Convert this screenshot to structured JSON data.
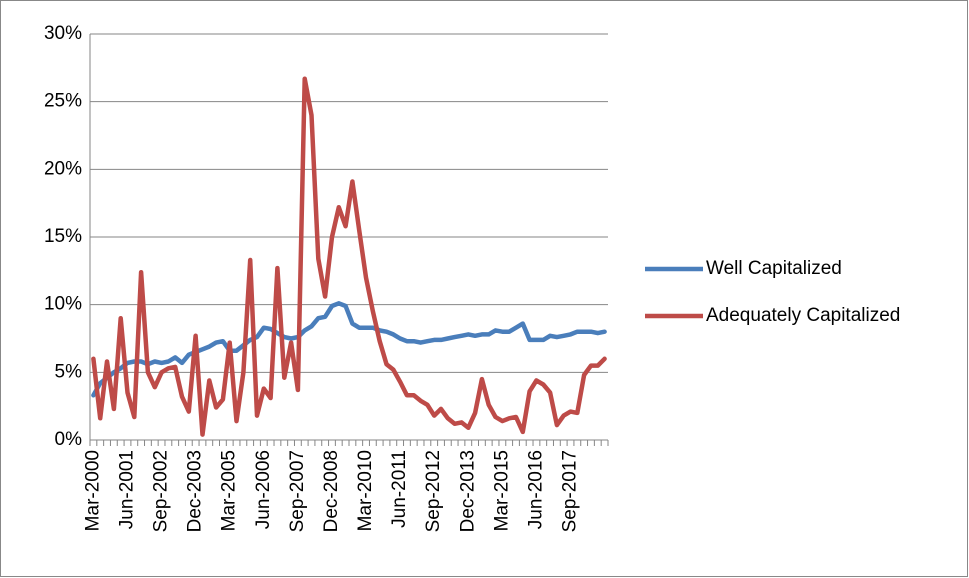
{
  "chart_data": {
    "type": "line",
    "categories": [
      "Mar-2000",
      null,
      null,
      null,
      null,
      "Jun-2001",
      null,
      null,
      null,
      null,
      "Sep-2002",
      null,
      null,
      null,
      null,
      "Dec-2003",
      null,
      null,
      null,
      null,
      "Mar-2005",
      null,
      null,
      null,
      null,
      "Jun-2006",
      null,
      null,
      null,
      null,
      "Sep-2007",
      null,
      null,
      null,
      null,
      "Dec-2008",
      null,
      null,
      null,
      null,
      "Mar-2010",
      null,
      null,
      null,
      null,
      "Jun-2011",
      null,
      null,
      null,
      null,
      "Sep-2012",
      null,
      null,
      null,
      null,
      "Dec-2013",
      null,
      null,
      null,
      null,
      "Mar-2015",
      null,
      null,
      null,
      null,
      "Jun-2016",
      null,
      null,
      null,
      null,
      "Sep-2017",
      null,
      null,
      null,
      null,
      null
    ],
    "series": [
      {
        "name": "Well Capitalized",
        "color": "#4a7ebb",
        "values": [
          3.3,
          4.2,
          4.6,
          5.0,
          5.3,
          5.7,
          5.8,
          5.8,
          5.6,
          5.8,
          5.7,
          5.8,
          6.1,
          5.7,
          6.3,
          6.5,
          6.7,
          6.9,
          7.2,
          7.3,
          6.6,
          6.6,
          7.0,
          7.4,
          7.6,
          8.3,
          8.2,
          7.9,
          7.6,
          7.5,
          7.6,
          8.1,
          8.4,
          9.0,
          9.1,
          9.9,
          10.1,
          9.9,
          8.6,
          8.3,
          8.3,
          8.3,
          8.1,
          8.0,
          7.8,
          7.5,
          7.3,
          7.3,
          7.2,
          7.3,
          7.4,
          7.4,
          7.5,
          7.6,
          7.7,
          7.8,
          7.7,
          7.8,
          7.8,
          8.1,
          8.0,
          8.0,
          8.3,
          8.6,
          7.4,
          7.4,
          7.4,
          7.7,
          7.6,
          7.7,
          7.8,
          8.0,
          8.0,
          8.0,
          7.9,
          8.0
        ]
      },
      {
        "name": "Adequately Capitalized",
        "color": "#be4b48",
        "values": [
          6.0,
          1.6,
          5.8,
          2.3,
          9.0,
          3.5,
          1.7,
          12.4,
          5.0,
          3.9,
          5.0,
          5.3,
          5.4,
          3.2,
          2.1,
          7.7,
          0.4,
          4.4,
          2.4,
          3.0,
          7.2,
          1.4,
          5.0,
          13.3,
          1.8,
          3.8,
          3.1,
          12.7,
          4.6,
          7.2,
          3.7,
          26.7,
          24.0,
          13.4,
          10.6,
          15.0,
          17.2,
          15.8,
          19.1,
          15.5,
          12.0,
          9.5,
          7.3,
          5.6,
          5.2,
          4.3,
          3.3,
          3.3,
          2.9,
          2.6,
          1.8,
          2.3,
          1.6,
          1.2,
          1.3,
          0.9,
          2.0,
          4.5,
          2.6,
          1.7,
          1.4,
          1.6,
          1.7,
          0.6,
          3.6,
          4.4,
          4.1,
          3.5,
          1.1,
          1.8,
          2.1,
          2.0,
          4.8,
          5.5,
          5.5,
          6.0
        ]
      }
    ],
    "ylim": [
      0,
      30
    ],
    "yticks": [
      {
        "value": 0,
        "label": "0%"
      },
      {
        "value": 5,
        "label": "5%"
      },
      {
        "value": 10,
        "label": "10%"
      },
      {
        "value": 15,
        "label": "15%"
      },
      {
        "value": 20,
        "label": "20%"
      },
      {
        "value": 25,
        "label": "25%"
      },
      {
        "value": 30,
        "label": "30%"
      }
    ],
    "grid": true,
    "legend": "right"
  }
}
